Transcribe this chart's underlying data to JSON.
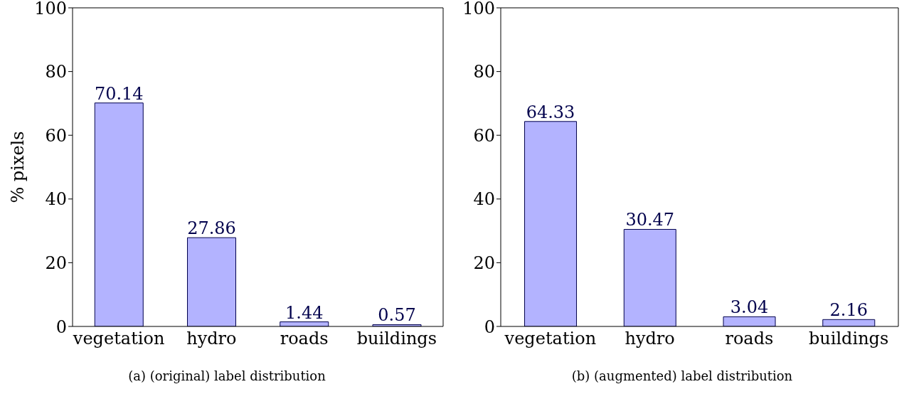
{
  "chart_data": [
    {
      "type": "bar",
      "title": "(a) (original) label distribution",
      "ylabel": "% pixels",
      "categories": [
        "vegetation",
        "hydro",
        "roads",
        "buildings"
      ],
      "values": [
        70.14,
        27.86,
        1.44,
        0.57
      ],
      "color": "#b3b3ff",
      "ylim": [
        0,
        100
      ],
      "yticks": [
        0,
        20,
        40,
        60,
        80,
        100
      ],
      "data_labels": true,
      "grid": false,
      "legend": false
    },
    {
      "type": "bar",
      "title": "(b) (augmented) label distribution",
      "categories": [
        "vegetation",
        "hydro",
        "roads",
        "buildings"
      ],
      "values": [
        64.33,
        30.47,
        3.04,
        2.16
      ],
      "color": "#b3b3ff",
      "ylim": [
        0,
        100
      ],
      "yticks": [
        0,
        20,
        40,
        60,
        80,
        100
      ],
      "data_labels": true,
      "grid": false,
      "legend": false
    }
  ]
}
